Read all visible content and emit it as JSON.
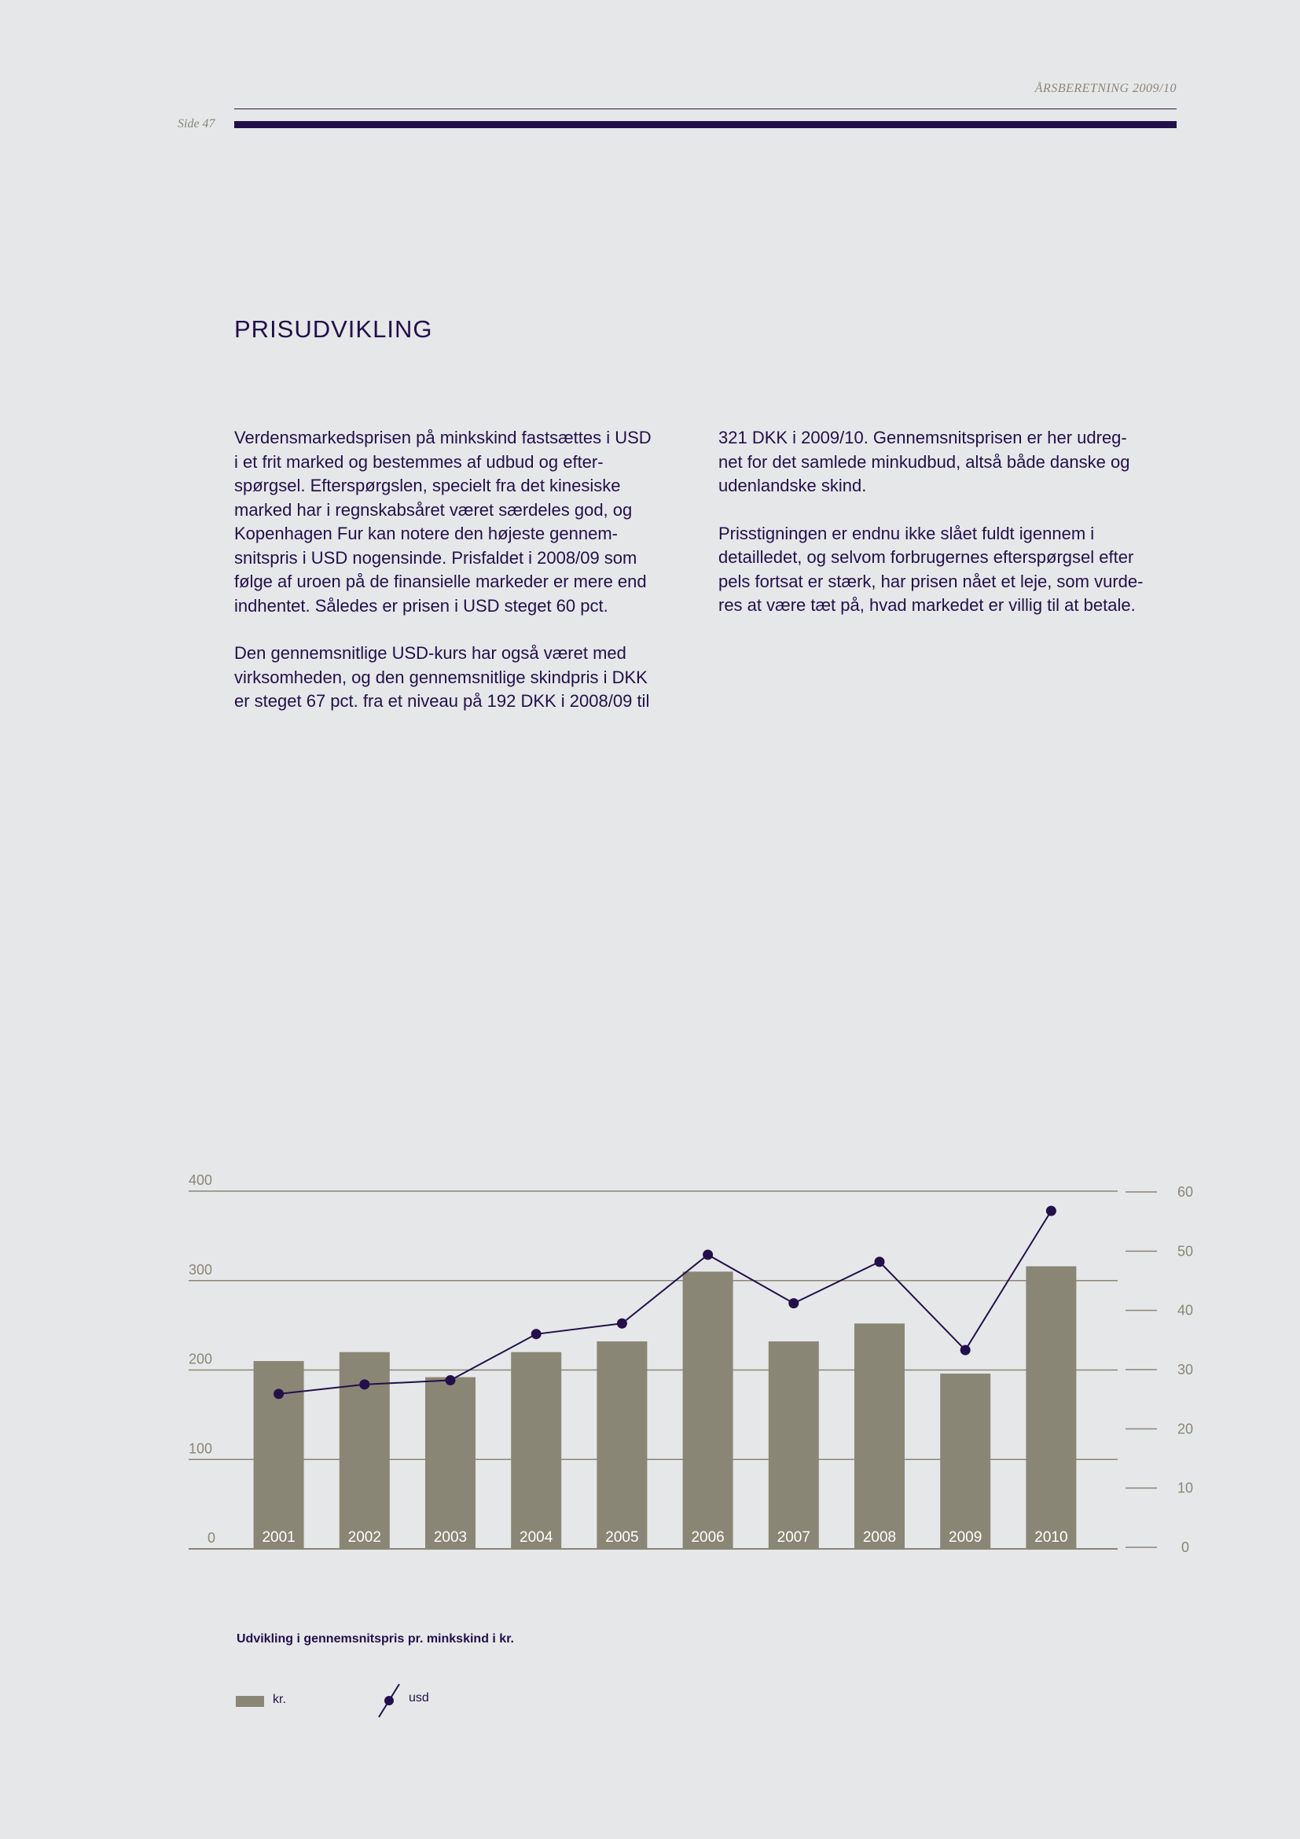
{
  "header": {
    "running_title": "ÅRSBERETNING 2009/10",
    "page_label": "Side 47"
  },
  "section": {
    "title": "PRISUDVIKLING"
  },
  "body": {
    "left_paragraphs": [
      "Verdensmarkedsprisen på minkskind fastsættes i USD\ni et frit marked og bestemmes af udbud og efter-\nspørgsel. Efterspørgslen, specielt fra det kinesiske\nmarked har i regnskabsåret været særdeles god, og\nKopenhagen Fur kan notere den højeste gennem-\nsnitspris i USD nogensinde. Prisfaldet i 2008/09 som\nfølge af uroen på de finansielle markeder er mere end\nindhentet. Således er prisen i USD steget 60 pct.",
      "Den gennemsnitlige USD-kurs har også været med\nvirksomheden, og den gennemsnitlige skindpris i DKK\ner steget 67 pct. fra et niveau på 192 DKK i 2008/09 til"
    ],
    "right_paragraphs": [
      "321 DKK i 2009/10. Gennemsnitsprisen er her udreg-\nnet for det samlede minkudbud, altså både danske og\nudenlandske skind.",
      "Prisstigningen er endnu ikke slået fuldt igennem i\ndetailledet, og selvom forbrugernes efterspørgsel efter\npels fortsat er stærk, har prisen nået et leje, som vurde-\nres at være tæt på, hvad markedet er villig til at betale."
    ]
  },
  "chart_caption": "Udvikling i gennemsnitspris pr. minkskind i kr.",
  "legend": {
    "bar_label": "kr.",
    "line_label": "usd"
  },
  "chart_data": {
    "type": "bar",
    "categories": [
      "2001",
      "2002",
      "2003",
      "2004",
      "2005",
      "2006",
      "2007",
      "2008",
      "2009",
      "2010"
    ],
    "series": [
      {
        "name": "kr.",
        "type": "bar",
        "axis": "left",
        "values": [
          210,
          220,
          192,
          220,
          232,
          310,
          232,
          252,
          196,
          316
        ]
      },
      {
        "name": "usd",
        "type": "line",
        "axis": "right",
        "values": [
          25.9,
          27.5,
          28.2,
          36.0,
          37.8,
          49.4,
          41.2,
          48.2,
          33.3,
          56.8
        ]
      }
    ],
    "left_axis": {
      "ticks": [
        0,
        100,
        200,
        300,
        400
      ],
      "ylim": [
        0,
        400
      ]
    },
    "right_axis": {
      "ticks": [
        0,
        10,
        20,
        30,
        40,
        50,
        60
      ],
      "ylim": [
        0,
        60
      ]
    },
    "grid": true,
    "colors": {
      "bar": "#8a8675",
      "line": "#23104a",
      "grid": "#8a8675",
      "text": "#8a8675"
    }
  }
}
